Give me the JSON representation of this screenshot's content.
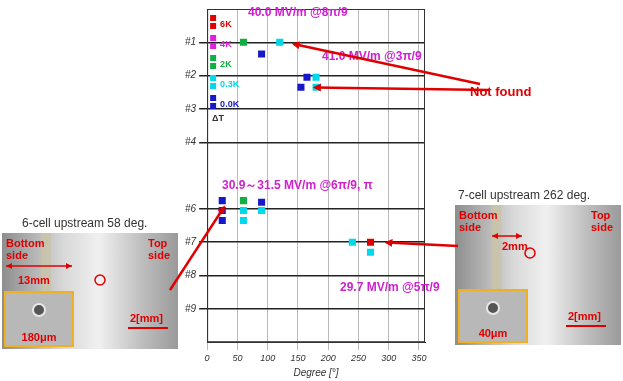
{
  "chart_data": {
    "type": "scatter",
    "x_label": "Degree [°]",
    "xlim": [
      0,
      360
    ],
    "xticks": [
      0,
      50,
      100,
      150,
      200,
      250,
      300,
      350
    ],
    "ylim": [
      0,
      10
    ],
    "yticks": [
      {
        "value": 1,
        "label": "#1"
      },
      {
        "value": 2,
        "label": "#2"
      },
      {
        "value": 3,
        "label": "#3"
      },
      {
        "value": 4,
        "label": "#4"
      },
      {
        "value": 6,
        "label": "#6"
      },
      {
        "value": 7,
        "label": "#7"
      },
      {
        "value": 8,
        "label": "#8"
      },
      {
        "value": 9,
        "label": "#9"
      }
    ],
    "grid": true,
    "marker": "square",
    "legend": "top left",
    "legend_title": "ΔT",
    "series": [
      {
        "name": "6K",
        "color": "#e00000",
        "x": [
          270
        ],
        "values": [
          7.0
        ]
      },
      {
        "name": "4K",
        "color": "#e020e0",
        "x": [],
        "values": []
      },
      {
        "name": "2K",
        "color": "#10b040",
        "x": [
          60,
          60
        ],
        "values": [
          1.0,
          5.75
        ]
      },
      {
        "name": "0.3K",
        "color": "#00d8ec",
        "x": [
          120,
          180,
          180,
          60,
          60,
          90,
          240,
          270
        ],
        "values": [
          1.0,
          2.05,
          2.35,
          6.05,
          6.35,
          6.05,
          7.0,
          7.3
        ]
      },
      {
        "name": "0.0K",
        "color": "#1818c8",
        "x": [
          90,
          155,
          165,
          25,
          25,
          25,
          90
        ],
        "values": [
          1.35,
          2.35,
          2.05,
          5.75,
          6.05,
          6.35,
          5.8
        ]
      }
    ],
    "annotations": [
      "40.0 MV/m @8π/9",
      "41.0 MV/m @3π/9",
      "30.9～31.5 MV/m @6π/9, π",
      "29.7 MV/m @5π/9",
      "Not found"
    ]
  },
  "insets": [
    {
      "caption": "6-cell upstream 58 deg.",
      "left_label": "Bottom side",
      "right_label": "Top side",
      "dimension": "13mm",
      "scale": "2[mm]",
      "zoom": "180μm"
    },
    {
      "caption": "7-cell upstream 262 deg.",
      "left_label": "Bottom side",
      "right_label": "Top side",
      "dimension": "2mm",
      "scale": "2[mm]",
      "zoom": "40μm"
    }
  ]
}
